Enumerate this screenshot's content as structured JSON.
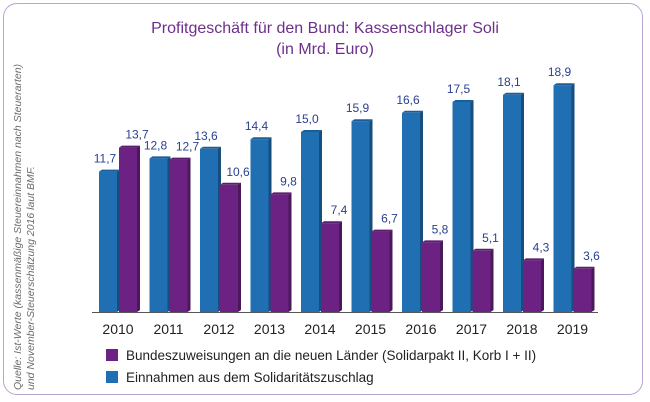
{
  "chart_data": {
    "type": "bar",
    "title": "Profitgeschäft für den Bund: Kassenschlager Soli",
    "subtitle": "(in Mrd. Euro)",
    "categories": [
      "2010",
      "2011",
      "2012",
      "2013",
      "2014",
      "2015",
      "2016",
      "2017",
      "2018",
      "2019"
    ],
    "series": [
      {
        "name": "Einnahmen aus dem Solidaritätszuschlag",
        "color": "#1f6fb2",
        "values": [
          11.7,
          12.8,
          13.6,
          14.4,
          15.0,
          15.9,
          16.6,
          17.5,
          18.1,
          18.9
        ],
        "labels": [
          "11,7",
          "12,8",
          "13,6",
          "14,4",
          "15,0",
          "15,9",
          "16,6",
          "17,5",
          "18,1",
          "18,9"
        ]
      },
      {
        "name": "Bundeszuweisungen an die neuen Länder (Solidarpakt II, Korb I + II)",
        "color": "#6b2282",
        "values": [
          13.7,
          12.7,
          10.6,
          9.8,
          7.4,
          6.7,
          5.8,
          5.1,
          4.3,
          3.6
        ],
        "labels": [
          "13,7",
          "12,7",
          "10,6",
          "9,8",
          "7,4",
          "6,7",
          "5,8",
          "5,1",
          "4,3",
          "3,6"
        ]
      }
    ],
    "legend_order": [
      1,
      0
    ],
    "legend_position": "bottom-left",
    "grid": false,
    "ylim": [
      0,
      20
    ]
  },
  "source_note": {
    "line1": "Quelle: Ist-Werte (kassenmäßige Steuereinnahmen nach Steuerarten)",
    "line2": "und November-Steuerschätzung 2016 laut BMF."
  },
  "colors": {
    "title": "#6d2f8c",
    "label": "#2a3f8f",
    "axis": "#555555",
    "border": "#b9a3cf"
  }
}
